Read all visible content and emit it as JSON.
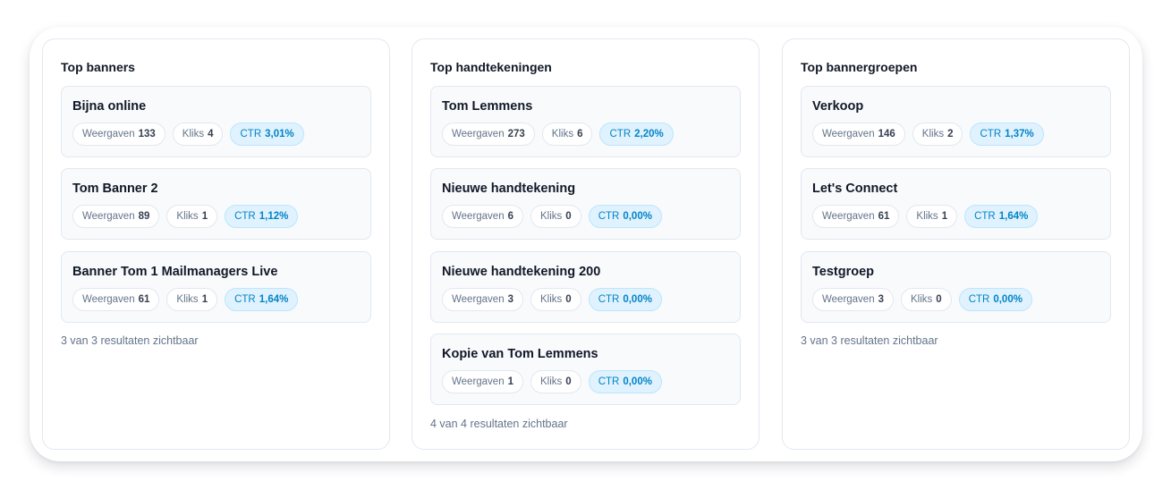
{
  "labels": {
    "views": "Weergaven",
    "clicks": "Kliks",
    "ctr": "CTR"
  },
  "columns": [
    {
      "title": "Top banners",
      "items": [
        {
          "name": "Bijna online",
          "views": "133",
          "clicks": "4",
          "ctr": "3,01%"
        },
        {
          "name": "Tom Banner 2",
          "views": "89",
          "clicks": "1",
          "ctr": "1,12%"
        },
        {
          "name": "Banner Tom 1 Mailmanagers Live",
          "views": "61",
          "clicks": "1",
          "ctr": "1,64%"
        }
      ],
      "footer": "3 van 3 resultaten zichtbaar"
    },
    {
      "title": "Top handtekeningen",
      "items": [
        {
          "name": "Tom Lemmens",
          "views": "273",
          "clicks": "6",
          "ctr": "2,20%"
        },
        {
          "name": "Nieuwe handtekening",
          "views": "6",
          "clicks": "0",
          "ctr": "0,00%"
        },
        {
          "name": "Nieuwe handtekening 200",
          "views": "3",
          "clicks": "0",
          "ctr": "0,00%"
        },
        {
          "name": "Kopie van Tom Lemmens",
          "views": "1",
          "clicks": "0",
          "ctr": "0,00%"
        }
      ],
      "footer": "4 van 4 resultaten zichtbaar"
    },
    {
      "title": "Top bannergroepen",
      "items": [
        {
          "name": "Verkoop",
          "views": "146",
          "clicks": "2",
          "ctr": "1,37%"
        },
        {
          "name": "Let's Connect",
          "views": "61",
          "clicks": "1",
          "ctr": "1,64%"
        },
        {
          "name": "Testgroep",
          "views": "3",
          "clicks": "0",
          "ctr": "0,00%"
        }
      ],
      "footer": "3 van 3 resultaten zichtbaar"
    }
  ]
}
